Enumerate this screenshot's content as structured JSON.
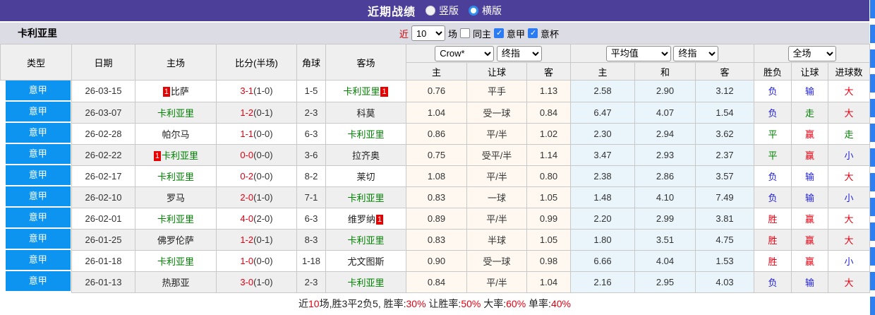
{
  "colors": {
    "topbar_purple": "#4C3F99",
    "league_cell_blue": "#0D94F0",
    "focus_team_green": "#008000",
    "win_red": "#E60012",
    "lose_blue": "#2222DD",
    "crow_col_bg": "#FFF8F0",
    "avg_col_bg": "#E9F4FB",
    "header_bg": "#EFEFEF",
    "subheader_bg": "#DCDCE4",
    "badge_red": "#E60000",
    "dash_strip_blue": "#2E7FF2"
  },
  "topbar": {
    "title": "近期战绩",
    "radio_vertical_label": "竖版",
    "radio_horizontal_label": "横版"
  },
  "subheader": {
    "team": "卡利亚里",
    "recent_label": "近",
    "count_value": "10",
    "games_label": "场",
    "same_home_label": "同主",
    "serie_a_label": "意甲",
    "coppa_label": "意杯"
  },
  "table": {
    "left_headers": [
      "类型",
      "日期",
      "主场",
      "比分(半场)",
      "角球",
      "客场"
    ],
    "selects": {
      "crow": "Crow*",
      "crow_final": "终指",
      "avg": "平均值",
      "avg_final": "终指",
      "scope": "全场"
    },
    "sub_headers": [
      "主",
      "让球",
      "客",
      "主",
      "和",
      "客",
      "胜负",
      "让球",
      "进球数"
    ],
    "rows": [
      {
        "league": "意甲",
        "date": "26-03-15",
        "home": {
          "badge_before": "1",
          "name": "比萨",
          "color": "black",
          "badge_after": ""
        },
        "score": {
          "full": "3-1",
          "half": "(1-0)"
        },
        "corners": "1-5",
        "away": {
          "badge_before": "",
          "name": "卡利亚里",
          "color": "green",
          "badge_after": "1"
        },
        "crow": [
          "0.76",
          "平手",
          "1.13"
        ],
        "avg": [
          "2.58",
          "2.90",
          "3.12"
        ],
        "results": [
          {
            "text": "负",
            "color": "blue"
          },
          {
            "text": "输",
            "color": "blue"
          },
          {
            "text": "大",
            "color": "red"
          }
        ]
      },
      {
        "league": "意甲",
        "date": "26-03-07",
        "home": {
          "badge_before": "",
          "name": "卡利亚里",
          "color": "green",
          "badge_after": ""
        },
        "score": {
          "full": "1-2",
          "half": "(0-1)"
        },
        "corners": "2-3",
        "away": {
          "badge_before": "",
          "name": "科莫",
          "color": "black",
          "badge_after": ""
        },
        "crow": [
          "1.04",
          "受一球",
          "0.84"
        ],
        "avg": [
          "6.47",
          "4.07",
          "1.54"
        ],
        "results": [
          {
            "text": "负",
            "color": "blue"
          },
          {
            "text": "走",
            "color": "green"
          },
          {
            "text": "大",
            "color": "red"
          }
        ]
      },
      {
        "league": "意甲",
        "date": "26-02-28",
        "home": {
          "badge_before": "",
          "name": "帕尔马",
          "color": "black",
          "badge_after": ""
        },
        "score": {
          "full": "1-1",
          "half": "(0-0)"
        },
        "corners": "6-3",
        "away": {
          "badge_before": "",
          "name": "卡利亚里",
          "color": "green",
          "badge_after": ""
        },
        "crow": [
          "0.86",
          "平/半",
          "1.02"
        ],
        "avg": [
          "2.30",
          "2.94",
          "3.62"
        ],
        "results": [
          {
            "text": "平",
            "color": "green"
          },
          {
            "text": "赢",
            "color": "red"
          },
          {
            "text": "走",
            "color": "green"
          }
        ]
      },
      {
        "league": "意甲",
        "date": "26-02-22",
        "home": {
          "badge_before": "1",
          "name": "卡利亚里",
          "color": "green",
          "badge_after": ""
        },
        "score": {
          "full": "0-0",
          "half": "(0-0)"
        },
        "corners": "3-6",
        "away": {
          "badge_before": "",
          "name": "拉齐奥",
          "color": "black",
          "badge_after": ""
        },
        "crow": [
          "0.75",
          "受平/半",
          "1.14"
        ],
        "avg": [
          "3.47",
          "2.93",
          "2.37"
        ],
        "results": [
          {
            "text": "平",
            "color": "green"
          },
          {
            "text": "赢",
            "color": "red"
          },
          {
            "text": "小",
            "color": "blue"
          }
        ]
      },
      {
        "league": "意甲",
        "date": "26-02-17",
        "home": {
          "badge_before": "",
          "name": "卡利亚里",
          "color": "green",
          "badge_after": ""
        },
        "score": {
          "full": "0-2",
          "half": "(0-0)"
        },
        "corners": "8-2",
        "away": {
          "badge_before": "",
          "name": "莱切",
          "color": "black",
          "badge_after": ""
        },
        "crow": [
          "1.08",
          "平/半",
          "0.80"
        ],
        "avg": [
          "2.38",
          "2.86",
          "3.57"
        ],
        "results": [
          {
            "text": "负",
            "color": "blue"
          },
          {
            "text": "输",
            "color": "blue"
          },
          {
            "text": "大",
            "color": "red"
          }
        ]
      },
      {
        "league": "意甲",
        "date": "26-02-10",
        "home": {
          "badge_before": "",
          "name": "罗马",
          "color": "black",
          "badge_after": ""
        },
        "score": {
          "full": "2-0",
          "half": "(1-0)"
        },
        "corners": "7-1",
        "away": {
          "badge_before": "",
          "name": "卡利亚里",
          "color": "green",
          "badge_after": ""
        },
        "crow": [
          "0.83",
          "一球",
          "1.05"
        ],
        "avg": [
          "1.48",
          "4.10",
          "7.49"
        ],
        "results": [
          {
            "text": "负",
            "color": "blue"
          },
          {
            "text": "输",
            "color": "blue"
          },
          {
            "text": "小",
            "color": "blue"
          }
        ]
      },
      {
        "league": "意甲",
        "date": "26-02-01",
        "home": {
          "badge_before": "",
          "name": "卡利亚里",
          "color": "green",
          "badge_after": ""
        },
        "score": {
          "full": "4-0",
          "half": "(2-0)"
        },
        "corners": "6-3",
        "away": {
          "badge_before": "",
          "name": "维罗纳",
          "color": "black",
          "badge_after": "1"
        },
        "crow": [
          "0.89",
          "平/半",
          "0.99"
        ],
        "avg": [
          "2.20",
          "2.99",
          "3.81"
        ],
        "results": [
          {
            "text": "胜",
            "color": "red"
          },
          {
            "text": "赢",
            "color": "red"
          },
          {
            "text": "大",
            "color": "red"
          }
        ]
      },
      {
        "league": "意甲",
        "date": "26-01-25",
        "home": {
          "badge_before": "",
          "name": "佛罗伦萨",
          "color": "black",
          "badge_after": ""
        },
        "score": {
          "full": "1-2",
          "half": "(0-1)"
        },
        "corners": "8-3",
        "away": {
          "badge_before": "",
          "name": "卡利亚里",
          "color": "green",
          "badge_after": ""
        },
        "crow": [
          "0.83",
          "半球",
          "1.05"
        ],
        "avg": [
          "1.80",
          "3.51",
          "4.75"
        ],
        "results": [
          {
            "text": "胜",
            "color": "red"
          },
          {
            "text": "赢",
            "color": "red"
          },
          {
            "text": "大",
            "color": "red"
          }
        ]
      },
      {
        "league": "意甲",
        "date": "26-01-18",
        "home": {
          "badge_before": "",
          "name": "卡利亚里",
          "color": "green",
          "badge_after": ""
        },
        "score": {
          "full": "1-0",
          "half": "(0-0)"
        },
        "corners": "1-18",
        "away": {
          "badge_before": "",
          "name": "尤文图斯",
          "color": "black",
          "badge_after": ""
        },
        "crow": [
          "0.90",
          "受一球",
          "0.98"
        ],
        "avg": [
          "6.66",
          "4.04",
          "1.53"
        ],
        "results": [
          {
            "text": "胜",
            "color": "red"
          },
          {
            "text": "赢",
            "color": "red"
          },
          {
            "text": "小",
            "color": "blue"
          }
        ]
      },
      {
        "league": "意甲",
        "date": "26-01-13",
        "home": {
          "badge_before": "",
          "name": "热那亚",
          "color": "black",
          "badge_after": ""
        },
        "score": {
          "full": "3-0",
          "half": "(1-0)"
        },
        "corners": "2-3",
        "away": {
          "badge_before": "",
          "name": "卡利亚里",
          "color": "green",
          "badge_after": ""
        },
        "crow": [
          "0.84",
          "平/半",
          "1.04"
        ],
        "avg": [
          "2.16",
          "2.95",
          "4.03"
        ],
        "results": [
          {
            "text": "负",
            "color": "blue"
          },
          {
            "text": "输",
            "color": "blue"
          },
          {
            "text": "大",
            "color": "red"
          }
        ]
      }
    ]
  },
  "footer": {
    "seg1": "近",
    "seg2": "10",
    "seg3": "场,胜3平2负5, 胜率:",
    "seg4": "30%",
    "seg5": " 让胜率:",
    "seg6": "50%",
    "seg7": " 大率:",
    "seg8": "60%",
    "seg9": " 单率:",
    "seg10": "40%"
  }
}
